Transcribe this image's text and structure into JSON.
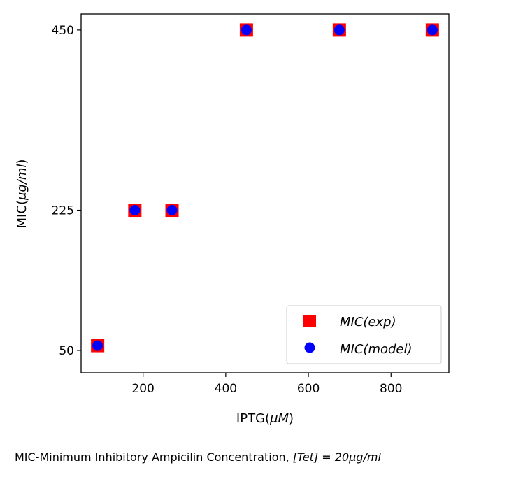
{
  "chart_data": {
    "type": "scatter",
    "xlabel_main": "IPTG(",
    "xlabel_unit": "μM",
    "xlabel_end": ")",
    "ylabel_main": "MIC(",
    "ylabel_unit": "μg/ml",
    "ylabel_end": ")",
    "xlim": [
      50,
      940
    ],
    "ylim": [
      22,
      470
    ],
    "xticks": [
      200,
      400,
      600,
      800
    ],
    "yticks": [
      50,
      225,
      450
    ],
    "grid": false,
    "legend_position": "lower-right",
    "series": [
      {
        "name": "MIC(exp)",
        "marker": "square",
        "color": "#ff0000",
        "x": [
          90,
          180,
          270,
          450,
          675,
          900
        ],
        "y": [
          56,
          225,
          225,
          450,
          450,
          450
        ]
      },
      {
        "name": "MIC(model)",
        "marker": "circle",
        "color": "#0000ff",
        "x": [
          90,
          180,
          270,
          450,
          675,
          900
        ],
        "y": [
          56,
          225,
          225,
          450,
          450,
          450
        ]
      }
    ],
    "legend": {
      "exp_main": "MIC",
      "exp_paren": "(exp)",
      "model_main": "MIC",
      "model_paren": "(model)"
    }
  },
  "caption": {
    "text": "MIC-Minimum Inhibitory Ampicilin Concentration,  ",
    "math": "[Tet] = 20μg/ml"
  }
}
